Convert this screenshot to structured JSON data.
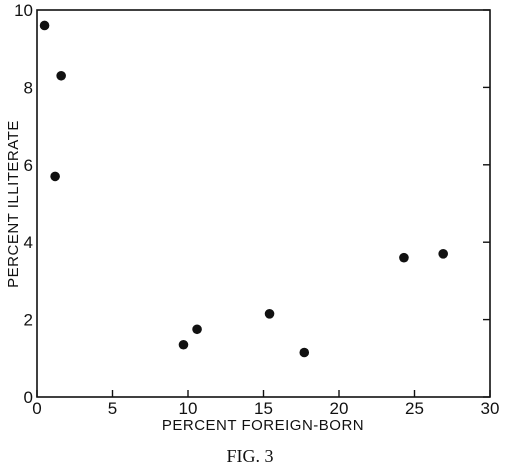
{
  "chart_data": {
    "type": "scatter",
    "title": "",
    "caption": "FIG. 3",
    "xlabel": "PERCENT FOREIGN-BORN",
    "ylabel": "PERCENT ILLITERATE",
    "xlim": [
      0,
      30
    ],
    "ylim": [
      0,
      10
    ],
    "x_ticks": [
      0,
      5,
      10,
      15,
      20,
      25,
      30
    ],
    "y_ticks": [
      0,
      2,
      4,
      6,
      8,
      10
    ],
    "grid": false,
    "legend": "none",
    "marker_color": "#111111",
    "points": [
      {
        "x": 0.5,
        "y": 9.6
      },
      {
        "x": 1.2,
        "y": 5.7
      },
      {
        "x": 1.6,
        "y": 8.3
      },
      {
        "x": 9.7,
        "y": 1.35
      },
      {
        "x": 10.6,
        "y": 1.75
      },
      {
        "x": 15.4,
        "y": 2.15
      },
      {
        "x": 17.7,
        "y": 1.15
      },
      {
        "x": 24.3,
        "y": 3.6
      },
      {
        "x": 26.9,
        "y": 3.7
      }
    ]
  }
}
